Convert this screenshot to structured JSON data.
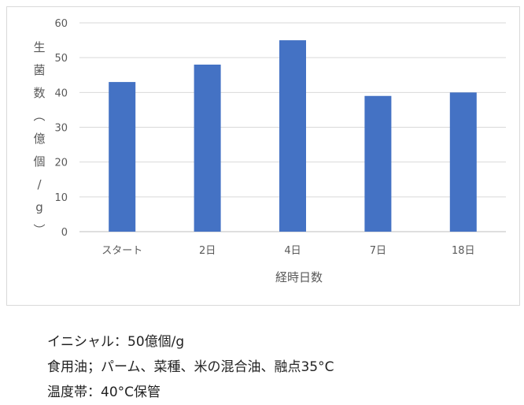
{
  "chart_data": {
    "type": "bar",
    "categories": [
      "スタート",
      "2日",
      "4日",
      "7日",
      "18日"
    ],
    "values": [
      43,
      48,
      55,
      39,
      40
    ],
    "xlabel": "経時日数",
    "ylabel": "生菌数（億個/g）",
    "ylim": [
      0,
      60
    ],
    "yticks": [
      0,
      10,
      20,
      30,
      40,
      50,
      60
    ],
    "grid": true,
    "bar_color": "#4472C4"
  },
  "notes": [
    "イニシャル：50億個/g",
    "食用油；パーム、菜種、米の混合油、融点35°C",
    "温度帯：40°C保管"
  ]
}
